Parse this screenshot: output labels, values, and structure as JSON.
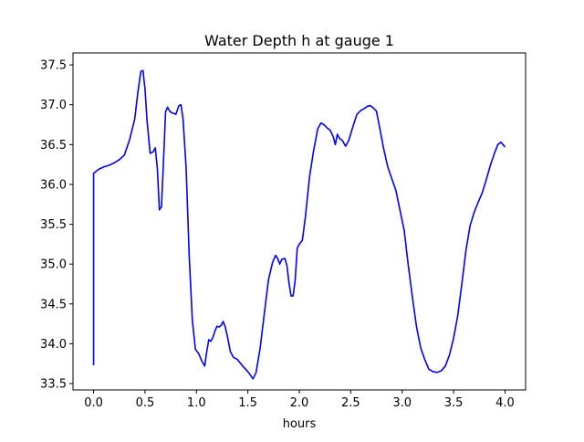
{
  "chart_data": {
    "type": "line",
    "title": "Water Depth h at gauge 1",
    "xlabel": "hours",
    "ylabel": "",
    "xlim": [
      -0.2,
      4.2
    ],
    "ylim": [
      33.42,
      37.65
    ],
    "xticks": [
      0.0,
      0.5,
      1.0,
      1.5,
      2.0,
      2.5,
      3.0,
      3.5,
      4.0
    ],
    "xtick_labels": [
      "0.0",
      "0.5",
      "1.0",
      "1.5",
      "2.0",
      "2.5",
      "3.0",
      "3.5",
      "4.0"
    ],
    "yticks": [
      33.5,
      34.0,
      34.5,
      35.0,
      35.5,
      36.0,
      36.5,
      37.0,
      37.5
    ],
    "ytick_labels": [
      "33.5",
      "34.0",
      "34.5",
      "35.0",
      "35.5",
      "36.0",
      "36.5",
      "37.0",
      "37.5"
    ],
    "grid": false,
    "series": [
      {
        "color": "#0000ff",
        "x": [
          0.0,
          0.0,
          0.05,
          0.1,
          0.15,
          0.2,
          0.25,
          0.3,
          0.35,
          0.4,
          0.43,
          0.46,
          0.48,
          0.5,
          0.52,
          0.55,
          0.58,
          0.6,
          0.62,
          0.64,
          0.66,
          0.68,
          0.7,
          0.72,
          0.74,
          0.76,
          0.8,
          0.83,
          0.85,
          0.87,
          0.9,
          0.93,
          0.96,
          0.99,
          1.02,
          1.05,
          1.08,
          1.1,
          1.12,
          1.14,
          1.16,
          1.18,
          1.2,
          1.22,
          1.24,
          1.26,
          1.28,
          1.3,
          1.33,
          1.36,
          1.4,
          1.45,
          1.5,
          1.55,
          1.58,
          1.62,
          1.66,
          1.7,
          1.74,
          1.77,
          1.79,
          1.81,
          1.83,
          1.86,
          1.88,
          1.9,
          1.92,
          1.94,
          1.96,
          1.98,
          2.0,
          2.03,
          2.06,
          2.1,
          2.14,
          2.18,
          2.21,
          2.24,
          2.27,
          2.3,
          2.33,
          2.35,
          2.37,
          2.39,
          2.42,
          2.45,
          2.48,
          2.52,
          2.56,
          2.6,
          2.63,
          2.66,
          2.69,
          2.72,
          2.75,
          2.78,
          2.82,
          2.86,
          2.9,
          2.94,
          2.98,
          3.02,
          3.06,
          3.1,
          3.14,
          3.18,
          3.22,
          3.26,
          3.3,
          3.34,
          3.38,
          3.42,
          3.46,
          3.5,
          3.54,
          3.58,
          3.62,
          3.66,
          3.7,
          3.74,
          3.78,
          3.82,
          3.86,
          3.9,
          3.93,
          3.96,
          4.0
        ],
        "y": [
          33.73,
          36.14,
          36.19,
          36.22,
          36.24,
          36.27,
          36.31,
          36.37,
          36.56,
          36.82,
          37.15,
          37.42,
          37.43,
          37.2,
          36.8,
          36.39,
          36.41,
          36.46,
          36.2,
          35.68,
          35.72,
          36.3,
          36.91,
          36.97,
          36.92,
          36.9,
          36.88,
          36.99,
          37.0,
          36.82,
          36.2,
          35.1,
          34.3,
          33.93,
          33.88,
          33.79,
          33.72,
          33.9,
          34.05,
          34.03,
          34.08,
          34.16,
          34.22,
          34.21,
          34.23,
          34.28,
          34.21,
          34.1,
          33.9,
          33.83,
          33.8,
          33.72,
          33.65,
          33.56,
          33.64,
          33.95,
          34.38,
          34.8,
          35.02,
          35.11,
          35.07,
          35.0,
          35.06,
          35.07,
          34.98,
          34.76,
          34.6,
          34.6,
          34.8,
          35.2,
          35.25,
          35.3,
          35.6,
          36.1,
          36.43,
          36.7,
          36.77,
          36.75,
          36.71,
          36.68,
          36.6,
          36.5,
          36.63,
          36.58,
          36.55,
          36.48,
          36.55,
          36.72,
          36.88,
          36.93,
          36.95,
          36.98,
          36.99,
          36.96,
          36.92,
          36.72,
          36.45,
          36.22,
          36.07,
          35.92,
          35.67,
          35.42,
          34.98,
          34.58,
          34.21,
          33.95,
          33.8,
          33.68,
          33.65,
          33.64,
          33.66,
          33.72,
          33.86,
          34.07,
          34.35,
          34.75,
          35.17,
          35.48,
          35.65,
          35.78,
          35.9,
          36.07,
          36.25,
          36.4,
          36.5,
          36.53,
          36.47
        ]
      }
    ]
  }
}
